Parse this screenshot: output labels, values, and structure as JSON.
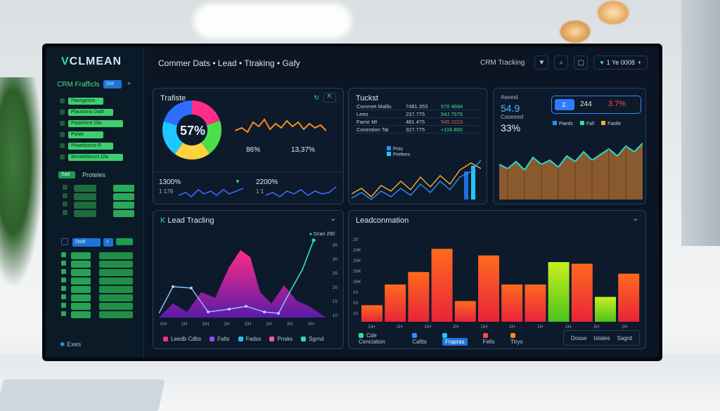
{
  "sidebar": {
    "logo": "CLMEAN",
    "section1": "CRM Frafficls",
    "section1_btn": "Dot",
    "items1": [
      "Pausgesss Dal",
      "Plausions Dath",
      "Pastelsne Dla",
      "Pshet",
      "Phaelsonss R",
      "Beoalsbinurs Dla"
    ],
    "section2_btn": "Sad",
    "section2": "Proteles",
    "section3_btn": "Dold",
    "footer": "Exes"
  },
  "topbar": {
    "breadcrumb": "Commer Dats • Lead • Ttraking • Gafy",
    "label": "CRM Tracking",
    "user_pill": "1 Ye 0008"
  },
  "traffic": {
    "title": "Trafiste",
    "donut_value": "57%",
    "stat_a": "86%",
    "stat_b": "13,37%",
    "spark1_big": "1300%",
    "spark1_small": "1 178",
    "spark2_big": "2200%",
    "spark2_small": "1 1"
  },
  "tickets": {
    "title": "Tuckst",
    "rows": [
      {
        "a": "Commet Malils",
        "b": "7481.353",
        "c": "570 4694"
      },
      {
        "a": "Leeo",
        "b": "237.775",
        "c": "54J 7575"
      },
      {
        "a": "Fame Ml",
        "b": "481 475",
        "c": "545.2223"
      },
      {
        "a": "Conestion    Tal",
        "b": "327.775",
        "c": "+116.800"
      }
    ],
    "legend": [
      "Pnts",
      "Prefees"
    ]
  },
  "summary": {
    "label": "Aeeest",
    "big1": "54.9",
    "sub1": "Caseeed",
    "big2": "33%",
    "toggle_a": "2.",
    "toggle_b": "244",
    "toggle_c": "3.7%",
    "legend": [
      "Paeds",
      "Fall",
      "Fastle"
    ]
  },
  "lead_tracking": {
    "title": "Lead Tracling",
    "badge": "Dcan 200",
    "y_ticks": [
      "35",
      "30",
      "25",
      "20",
      "15",
      "10"
    ],
    "x_ticks": [
      "DH",
      "2H",
      "DH",
      "2H",
      "DH",
      "2H",
      "2H",
      "2H"
    ],
    "legend": [
      "Leedb Cdbs",
      "Falts",
      "Fadss",
      "Pnsks",
      "Sgrnd"
    ]
  },
  "lead_conversion": {
    "title": "Leadconmation",
    "y_ticks": [
      "20",
      "20K",
      "25K",
      "20K",
      "26K",
      "10",
      "10",
      "10"
    ],
    "x_ticks": [
      "DH",
      "2H",
      "DH",
      "2H",
      "DH",
      "2H",
      "2H",
      "2H",
      "2H",
      "2H"
    ],
    "values": [
      20,
      45,
      60,
      88,
      25,
      80,
      45,
      45,
      72,
      70,
      30,
      58
    ],
    "legend": [
      "Cde Cenciation",
      "Caltts",
      "Frapras",
      "Fells",
      "Ttrys"
    ],
    "legend_box": [
      "Dosse",
      "Istales",
      "Sagrd"
    ]
  },
  "colors": {
    "accent": "#2ce29a",
    "blue": "#1d74d8",
    "danger": "#ff4b4b"
  }
}
